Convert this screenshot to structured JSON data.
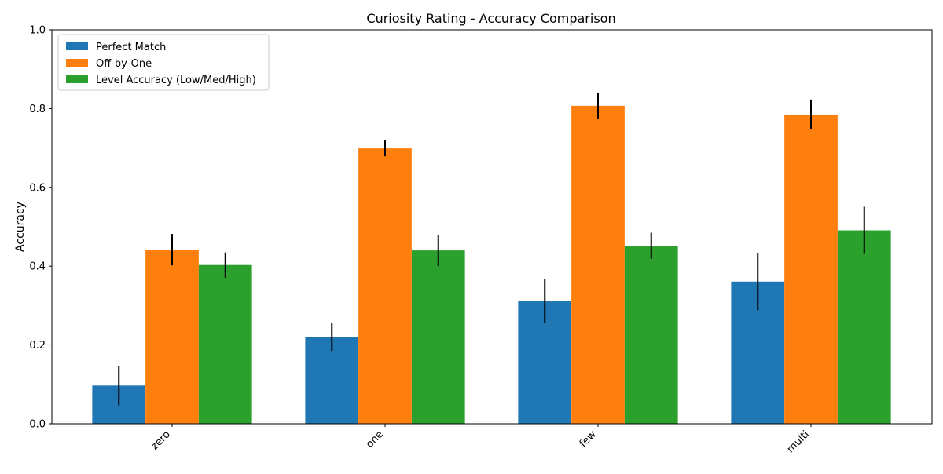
{
  "chart_data": {
    "type": "bar",
    "title": "Curiosity Rating - Accuracy Comparison",
    "xlabel": "",
    "ylabel": "Accuracy",
    "ylim": [
      0,
      1.0
    ],
    "yticks": [
      "0.0",
      "0.2",
      "0.4",
      "0.6",
      "0.8",
      "1.0"
    ],
    "categories": [
      "zero",
      "one",
      "few",
      "multi"
    ],
    "series": [
      {
        "name": "Perfect Match",
        "color": "#1f77b4",
        "values": [
          0.097,
          0.22,
          0.312,
          0.361
        ],
        "errors": [
          0.05,
          0.035,
          0.056,
          0.073
        ]
      },
      {
        "name": "Off-by-One",
        "color": "#ff7f0e",
        "values": [
          0.442,
          0.699,
          0.807,
          0.785
        ],
        "errors": [
          0.04,
          0.02,
          0.032,
          0.038
        ]
      },
      {
        "name": "Level Accuracy (Low/Med/High)",
        "color": "#2ca02c",
        "values": [
          0.403,
          0.44,
          0.452,
          0.491
        ],
        "errors": [
          0.032,
          0.04,
          0.033,
          0.06
        ]
      }
    ],
    "legend_position": "top-left",
    "grid": false
  }
}
